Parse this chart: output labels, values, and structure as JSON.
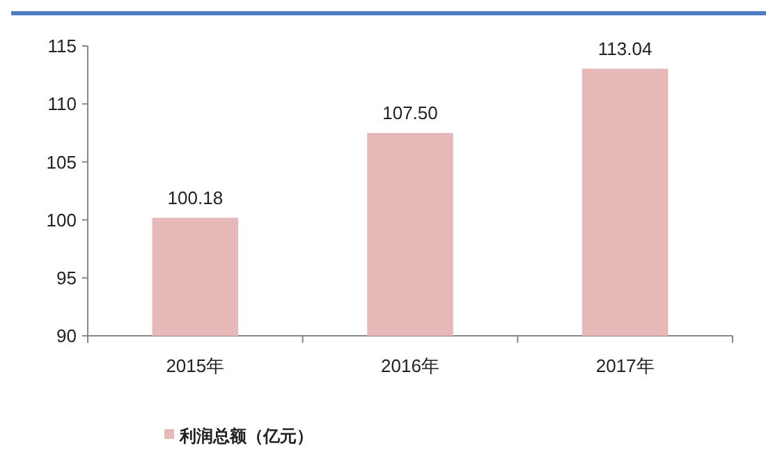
{
  "chart_data": {
    "type": "bar",
    "categories": [
      "2015年",
      "2016年",
      "2017年"
    ],
    "series": [
      {
        "name": "利润总额（亿元）",
        "color": "#e6b8b7",
        "values": [
          100.18,
          107.5,
          113.04
        ]
      }
    ],
    "value_labels": [
      "100.18",
      "107.50",
      "113.04"
    ],
    "ylim": [
      90,
      115
    ],
    "yticks": [
      90,
      95,
      100,
      105,
      110,
      115
    ],
    "grid": false,
    "legend": "bottom left"
  }
}
